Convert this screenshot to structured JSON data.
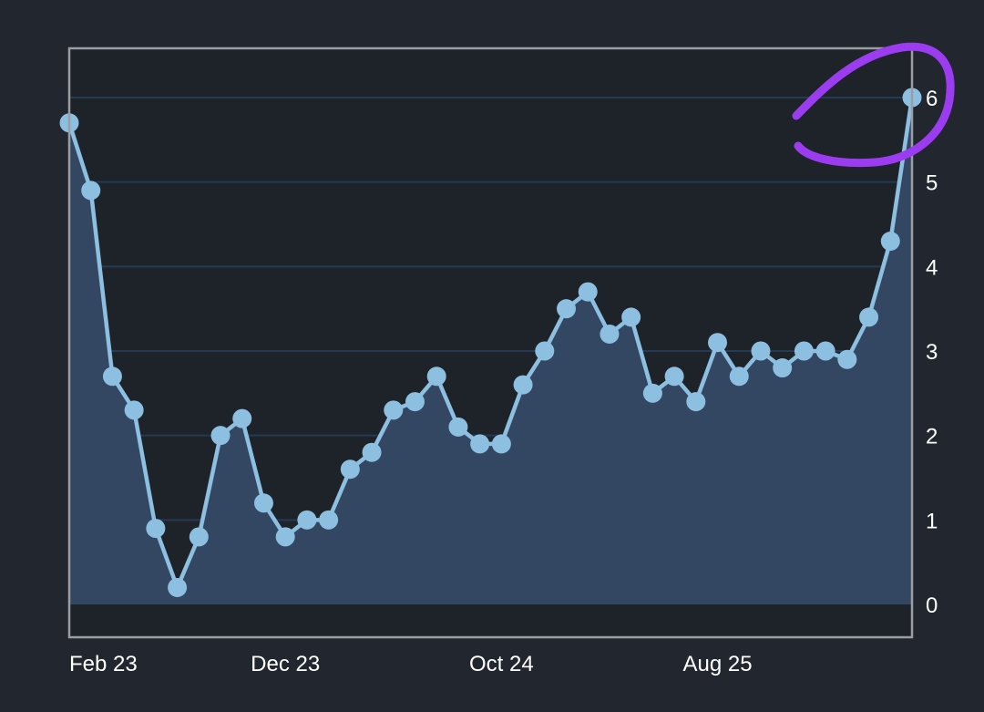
{
  "colors": {
    "background": "#22262e",
    "plot_background": "#1e2229",
    "area_fill": "#344762",
    "line": "#8cbfe0",
    "marker": "#8cbfe0",
    "grid": "#243a55",
    "frame": "#9a9da2",
    "tick_text": "#ffffff",
    "annotation": "#9b3cf0"
  },
  "annotation": {
    "shape": "hand-drawn circle",
    "target": "last point"
  },
  "chart_data": {
    "type": "area",
    "title": "",
    "xlabel": "",
    "ylabel": "",
    "ylim": [
      0,
      6
    ],
    "yticks": [
      0,
      1,
      2,
      3,
      4,
      5,
      6
    ],
    "y_axis_side": "right",
    "grid": true,
    "markers": true,
    "x_tick_labels": [
      "Feb 23",
      "Dec 23",
      "Oct 24",
      "Aug 25"
    ],
    "x_tick_positions": [
      "2023-02",
      "2023-12",
      "2024-10",
      "2025-08"
    ],
    "x": [
      "2023-02",
      "2023-03",
      "2023-04",
      "2023-05",
      "2023-06",
      "2023-07",
      "2023-08",
      "2023-09",
      "2023-10",
      "2023-11",
      "2023-12",
      "2024-01",
      "2024-02",
      "2024-03",
      "2024-04",
      "2024-05",
      "2024-06",
      "2024-07",
      "2024-08",
      "2024-09",
      "2024-10",
      "2024-11",
      "2024-12",
      "2025-01",
      "2025-02",
      "2025-03",
      "2025-04",
      "2025-05",
      "2025-06",
      "2025-07",
      "2025-08",
      "2025-09",
      "2025-10",
      "2025-11",
      "2025-12",
      "2026-01",
      "2026-02",
      "2026-03",
      "2026-04",
      "2026-05"
    ],
    "values": [
      5.7,
      4.9,
      2.7,
      2.3,
      0.9,
      0.2,
      0.8,
      2.0,
      2.2,
      1.2,
      0.8,
      1.0,
      1.0,
      1.6,
      1.8,
      2.3,
      2.4,
      2.7,
      2.1,
      1.9,
      1.9,
      2.6,
      3.0,
      3.5,
      3.7,
      3.2,
      3.4,
      2.5,
      2.7,
      2.4,
      3.1,
      2.7,
      3.0,
      2.8,
      3.0,
      3.0,
      2.9,
      3.4,
      4.3,
      6.0
    ]
  }
}
